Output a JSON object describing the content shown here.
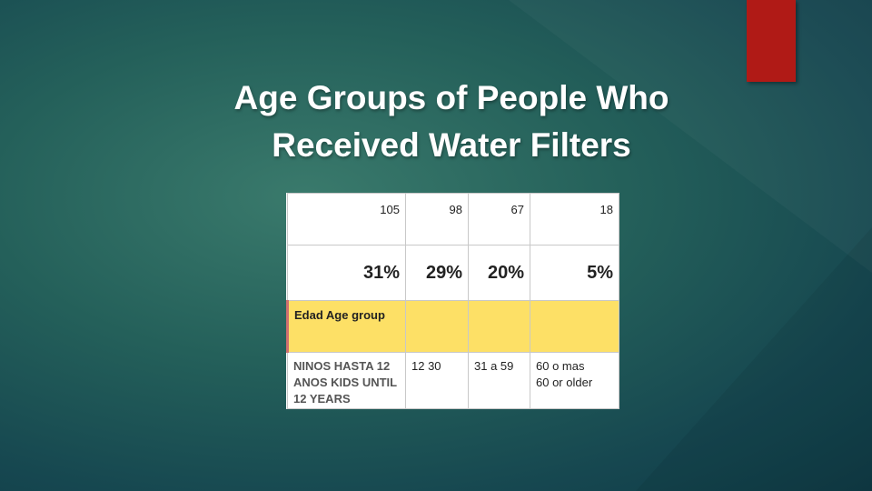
{
  "title": "Age Groups of People Who Received Water Filters",
  "table": {
    "counts": [
      105,
      98,
      67,
      18
    ],
    "percents": [
      "31%",
      "29%",
      "20%",
      "5%"
    ],
    "header": "Edad Age group",
    "age_groups": [
      "NINOS HASTA 12 ANOS  KIDS UNTIL 12 YEARS",
      "12  30",
      "31 a 59",
      "60 o mas\n60 or older"
    ]
  }
}
